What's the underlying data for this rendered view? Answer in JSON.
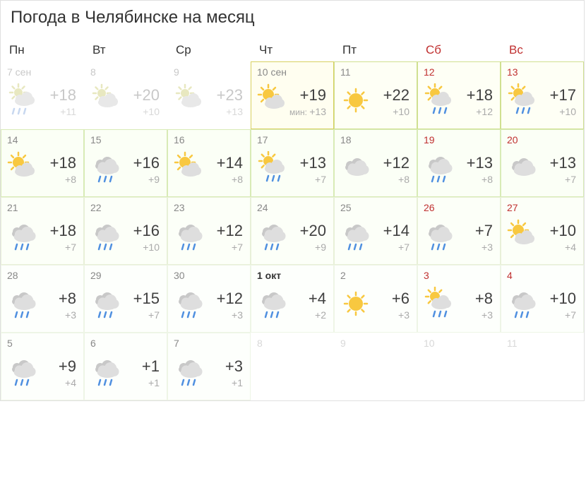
{
  "title": "Погода в Челябинске на месяц",
  "weekdays": [
    {
      "label": "Пн",
      "weekend": false
    },
    {
      "label": "Вт",
      "weekend": false
    },
    {
      "label": "Ср",
      "weekend": false
    },
    {
      "label": "Чт",
      "weekend": false
    },
    {
      "label": "Пт",
      "weekend": false
    },
    {
      "label": "Сб",
      "weekend": true
    },
    {
      "label": "Вс",
      "weekend": true
    }
  ],
  "colors": {
    "weekend_text": "#c03030",
    "muted": "#aaa",
    "hi": "#404040",
    "today_bg": "#fffef0",
    "today_border": "#d8d060"
  },
  "days": [
    {
      "date": "7 сен",
      "hi": "+18",
      "lo": "+11",
      "icon": "partly-rain",
      "tier": "past",
      "weekend": false
    },
    {
      "date": "8",
      "hi": "+20",
      "lo": "+10",
      "icon": "partly",
      "tier": "past",
      "weekend": false
    },
    {
      "date": "9",
      "hi": "+23",
      "lo": "+13",
      "icon": "partly",
      "tier": "past",
      "weekend": false
    },
    {
      "date": "10 сен",
      "hi": "+19",
      "lo": "+13",
      "lo_prefix": "мин: ",
      "icon": "sun-cloud",
      "tier": "today",
      "weekend": false
    },
    {
      "date": "11",
      "hi": "+22",
      "lo": "+10",
      "icon": "sun",
      "tier": "tier1",
      "weekend": false
    },
    {
      "date": "12",
      "hi": "+18",
      "lo": "+12",
      "icon": "sun-cloud-rain",
      "tier": "tier1",
      "weekend": true
    },
    {
      "date": "13",
      "hi": "+17",
      "lo": "+10",
      "icon": "sun-cloud-rain",
      "tier": "tier1",
      "weekend": true
    },
    {
      "date": "14",
      "hi": "+18",
      "lo": "+8",
      "icon": "sun-cloud",
      "tier": "tier2",
      "weekend": false
    },
    {
      "date": "15",
      "hi": "+16",
      "lo": "+9",
      "icon": "cloud-rain",
      "tier": "tier2",
      "weekend": false
    },
    {
      "date": "16",
      "hi": "+14",
      "lo": "+8",
      "icon": "sun-cloud",
      "tier": "tier2",
      "weekend": false
    },
    {
      "date": "17",
      "hi": "+13",
      "lo": "+7",
      "icon": "sun-cloud-rain",
      "tier": "tier2",
      "weekend": false
    },
    {
      "date": "18",
      "hi": "+12",
      "lo": "+8",
      "icon": "cloud",
      "tier": "tier2",
      "weekend": false
    },
    {
      "date": "19",
      "hi": "+13",
      "lo": "+8",
      "icon": "cloud-rain",
      "tier": "tier2",
      "weekend": true
    },
    {
      "date": "20",
      "hi": "+13",
      "lo": "+7",
      "icon": "cloud",
      "tier": "tier2",
      "weekend": true
    },
    {
      "date": "21",
      "hi": "+18",
      "lo": "+7",
      "icon": "cloud-rain",
      "tier": "tier3",
      "weekend": false
    },
    {
      "date": "22",
      "hi": "+16",
      "lo": "+10",
      "icon": "cloud-rain",
      "tier": "tier3",
      "weekend": false
    },
    {
      "date": "23",
      "hi": "+12",
      "lo": "+7",
      "icon": "cloud-rain",
      "tier": "tier3",
      "weekend": false
    },
    {
      "date": "24",
      "hi": "+20",
      "lo": "+9",
      "icon": "cloud-rain",
      "tier": "tier3",
      "weekend": false
    },
    {
      "date": "25",
      "hi": "+14",
      "lo": "+7",
      "icon": "cloud-rain",
      "tier": "tier3",
      "weekend": false
    },
    {
      "date": "26",
      "hi": "+7",
      "lo": "+3",
      "icon": "cloud-rain",
      "tier": "tier3",
      "weekend": true
    },
    {
      "date": "27",
      "hi": "+10",
      "lo": "+4",
      "icon": "sun-cloud",
      "tier": "tier3",
      "weekend": true
    },
    {
      "date": "28",
      "hi": "+8",
      "lo": "+3",
      "icon": "cloud-rain",
      "tier": "tier4",
      "weekend": false
    },
    {
      "date": "29",
      "hi": "+15",
      "lo": "+7",
      "icon": "cloud-rain",
      "tier": "tier4",
      "weekend": false
    },
    {
      "date": "30",
      "hi": "+12",
      "lo": "+3",
      "icon": "cloud-rain",
      "tier": "tier4",
      "weekend": false
    },
    {
      "date": "1 окт",
      "hi": "+4",
      "lo": "+2",
      "icon": "cloud-rain",
      "tier": "tier4",
      "weekend": false
    },
    {
      "date": "2",
      "hi": "+6",
      "lo": "+3",
      "icon": "sun",
      "tier": "tier4",
      "weekend": false
    },
    {
      "date": "3",
      "hi": "+8",
      "lo": "+3",
      "icon": "sun-cloud-rain",
      "tier": "tier4",
      "weekend": true
    },
    {
      "date": "4",
      "hi": "+10",
      "lo": "+7",
      "icon": "cloud-rain",
      "tier": "tier4",
      "weekend": true
    },
    {
      "date": "5",
      "hi": "+9",
      "lo": "+4",
      "icon": "cloud-rain",
      "tier": "tier4",
      "weekend": false
    },
    {
      "date": "6",
      "hi": "+1",
      "lo": "+1",
      "icon": "cloud-rain",
      "tier": "tier4",
      "weekend": false
    },
    {
      "date": "7",
      "hi": "+3",
      "lo": "+1",
      "icon": "cloud-rain",
      "tier": "tier4",
      "weekend": false
    },
    {
      "date": "8",
      "empty": true,
      "weekend": false
    },
    {
      "date": "9",
      "empty": true,
      "weekend": false
    },
    {
      "date": "10",
      "empty": true,
      "weekend": true
    },
    {
      "date": "11",
      "empty": true,
      "weekend": true
    }
  ]
}
